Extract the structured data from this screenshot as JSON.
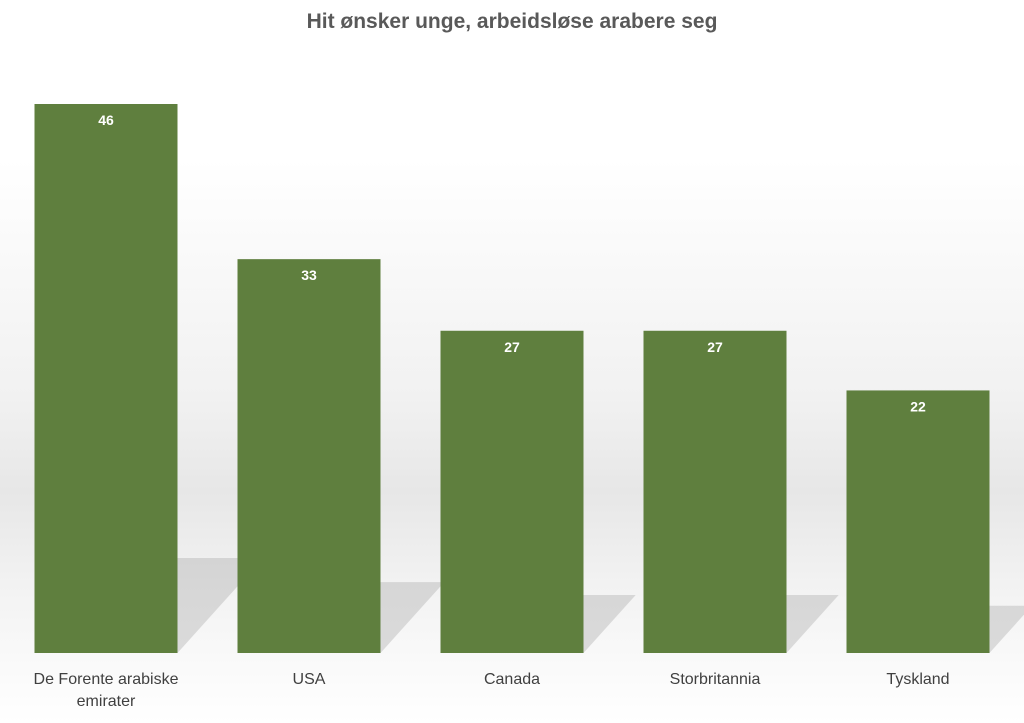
{
  "chart_data": {
    "type": "bar",
    "title": "Hit ønsker unge, arbeidsløse arabere seg",
    "categories": [
      "De Forente arabiske emirater",
      "USA",
      "Canada",
      "Storbritannia",
      "Tyskland"
    ],
    "category_lines": [
      [
        "De Forente arabiske",
        "emirater"
      ],
      [
        "USA"
      ],
      [
        "Canada"
      ],
      [
        "Storbritannia"
      ],
      [
        "Tyskland"
      ]
    ],
    "values": [
      46,
      33,
      27,
      27,
      22
    ],
    "data_labels": [
      "46",
      "33",
      "27",
      "27",
      "22"
    ],
    "ylim": [
      0,
      46
    ],
    "bar_color": "#5f7f3e",
    "grid": false,
    "legend": "none"
  }
}
